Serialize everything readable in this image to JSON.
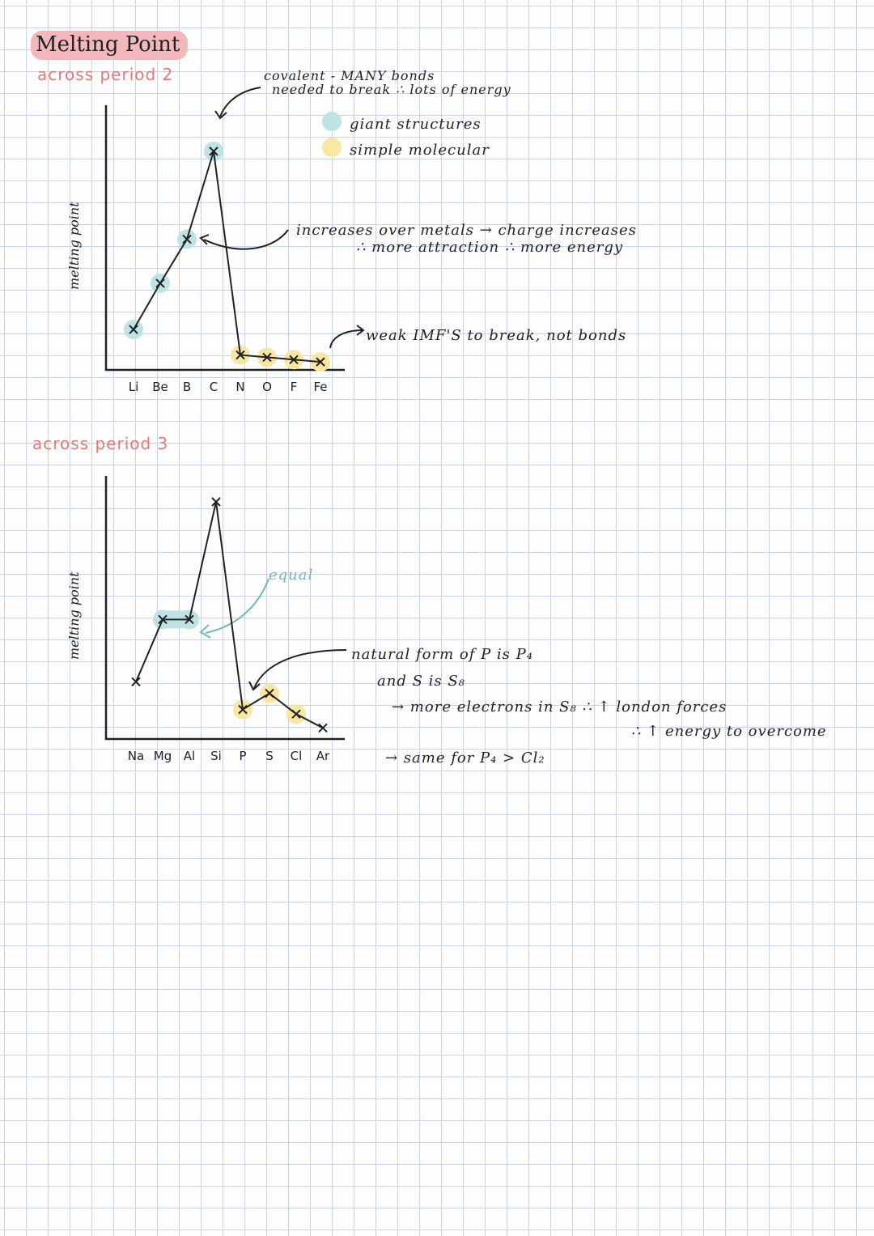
{
  "page": {
    "title": "Melting Point",
    "colors": {
      "giant": "#bfe3e4",
      "simple": "#f8e6a3",
      "heading": "#e07a76",
      "title_bg": "#f3b8bb",
      "equal": "#6fb7bd"
    }
  },
  "period2": {
    "heading": "across period 2",
    "ylabel": "melting point",
    "legend": {
      "giant": "giant structures",
      "simple": "simple molecular"
    },
    "annotations": {
      "covalent_1": "covalent - MANY bonds",
      "covalent_2": "needed to break ∴ lots of energy",
      "metals_1": "increases over metals → charge increases",
      "metals_2": "∴ more attraction ∴ more energy",
      "weak": "weak IMF'S to break, not bonds"
    }
  },
  "period3": {
    "heading": "across period 3",
    "ylabel": "melting point",
    "annotations": {
      "equal": "equal",
      "natural_1": "natural form of P is P₄",
      "natural_2": "and S is S₈",
      "natural_3": "→ more electrons in S₈ ∴ ↑ london forces",
      "natural_4": "∴ ↑ energy to overcome",
      "same": "→ same for P₄ > Cl₂"
    }
  },
  "chart_data": [
    {
      "type": "line",
      "categories": [
        "Li",
        "Be",
        "B",
        "C",
        "N",
        "O",
        "F",
        "Fe"
      ],
      "values": [
        15,
        35,
        54,
        92,
        4,
        3,
        2,
        1
      ],
      "highlight": [
        "giant",
        "giant",
        "giant",
        "giant",
        "simple",
        "simple",
        "simple",
        "simple"
      ],
      "ylabel": "melting point",
      "ylim": [
        0,
        100
      ],
      "grid": false
    },
    {
      "type": "line",
      "categories": [
        "Na",
        "Mg",
        "Al",
        "Si",
        "P",
        "S",
        "Cl",
        "Ar"
      ],
      "values": [
        22,
        49,
        49,
        100,
        10,
        17,
        8,
        2
      ],
      "highlight": [
        "none",
        "giant",
        "giant",
        "none",
        "simple",
        "simple",
        "simple",
        "none"
      ],
      "ylabel": "melting point",
      "ylim": [
        0,
        100
      ],
      "grid": false
    }
  ]
}
